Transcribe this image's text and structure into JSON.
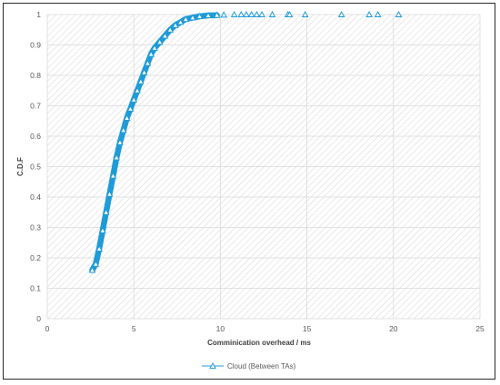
{
  "chart_data": {
    "type": "scatter",
    "xlabel": "Comminication overhead / ms",
    "ylabel": "C.D.F",
    "xlim": [
      0,
      25
    ],
    "ylim": [
      0,
      1
    ],
    "xticks": [
      "0",
      "5",
      "10",
      "15",
      "20",
      "25"
    ],
    "yticks": [
      "0",
      "0.1",
      "0.2",
      "0.3",
      "0.4",
      "0.5",
      "0.6",
      "0.7",
      "0.8",
      "0.9",
      "1"
    ],
    "grid": true,
    "legend_position": "bottom",
    "series": [
      {
        "name": "Cloud (Between TAs)",
        "color": "#1f9bd7",
        "marker": "triangle-open",
        "points": [
          [
            2.6,
            0.16
          ],
          [
            2.8,
            0.18
          ],
          [
            3.0,
            0.23
          ],
          [
            3.2,
            0.29
          ],
          [
            3.4,
            0.35
          ],
          [
            3.6,
            0.41
          ],
          [
            3.8,
            0.47
          ],
          [
            4.0,
            0.53
          ],
          [
            4.2,
            0.58
          ],
          [
            4.4,
            0.62
          ],
          [
            4.6,
            0.66
          ],
          [
            4.8,
            0.69
          ],
          [
            5.0,
            0.72
          ],
          [
            5.2,
            0.75
          ],
          [
            5.4,
            0.78
          ],
          [
            5.6,
            0.81
          ],
          [
            5.8,
            0.84
          ],
          [
            6.0,
            0.87
          ],
          [
            6.2,
            0.89
          ],
          [
            6.5,
            0.91
          ],
          [
            6.8,
            0.93
          ],
          [
            7.1,
            0.95
          ],
          [
            7.4,
            0.965
          ],
          [
            7.7,
            0.975
          ],
          [
            8.0,
            0.985
          ],
          [
            8.4,
            0.99
          ],
          [
            8.8,
            0.994
          ],
          [
            9.3,
            0.997
          ],
          [
            9.8,
            0.998
          ],
          [
            10.2,
            0.999
          ],
          [
            10.8,
            1.0
          ],
          [
            11.2,
            1.0
          ],
          [
            11.5,
            1.0
          ],
          [
            11.8,
            1.0
          ],
          [
            12.1,
            1.0
          ],
          [
            12.4,
            1.0
          ],
          [
            13.0,
            1.0
          ],
          [
            13.9,
            1.0
          ],
          [
            14.0,
            1.0
          ],
          [
            14.9,
            1.0
          ],
          [
            17.0,
            1.0
          ],
          [
            18.6,
            1.0
          ],
          [
            19.1,
            1.0
          ],
          [
            20.3,
            1.0
          ]
        ]
      }
    ]
  }
}
